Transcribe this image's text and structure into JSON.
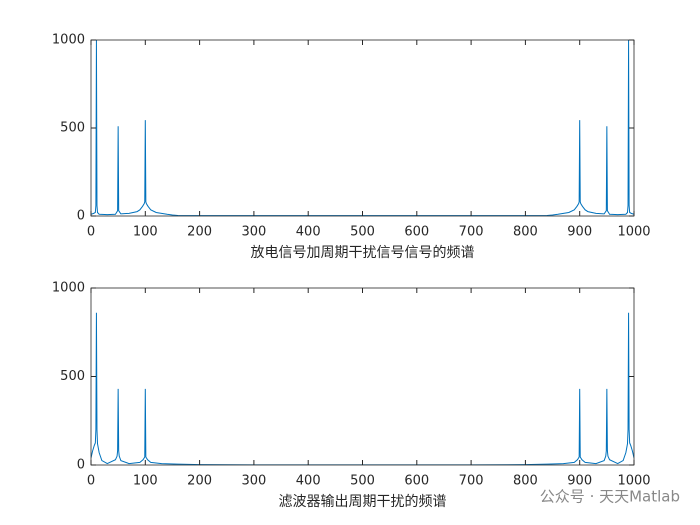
{
  "chart_data": [
    {
      "type": "line",
      "xlabel": "放电信号加周期干扰信号信号的频谱",
      "x": [
        0,
        5,
        8,
        9,
        10,
        11,
        12,
        15,
        30,
        45,
        49,
        50,
        51,
        55,
        70,
        85,
        90,
        95,
        98,
        99,
        100,
        101,
        102,
        105,
        110,
        120,
        140,
        150,
        160,
        200,
        300,
        400,
        500,
        600,
        700,
        800,
        840,
        850,
        860,
        880,
        890,
        895,
        898,
        899,
        900,
        901,
        902,
        905,
        910,
        915,
        930,
        945,
        949,
        950,
        951,
        955,
        970,
        985,
        988,
        989,
        990,
        991,
        992,
        995,
        1000
      ],
      "series": [
        {
          "color": "#0072bd",
          "values": [
            10,
            15,
            20,
            60,
            1000,
            60,
            20,
            10,
            8,
            10,
            30,
            510,
            30,
            12,
            15,
            25,
            35,
            55,
            70,
            80,
            545,
            80,
            70,
            55,
            35,
            20,
            10,
            6,
            3,
            2,
            2,
            2,
            2,
            2,
            2,
            2,
            3,
            6,
            10,
            20,
            35,
            55,
            70,
            80,
            545,
            80,
            70,
            55,
            35,
            25,
            15,
            12,
            30,
            510,
            30,
            10,
            8,
            10,
            20,
            60,
            1000,
            60,
            20,
            15,
            10
          ]
        }
      ],
      "xlim": [
        0,
        1000
      ],
      "xticks": [
        0,
        100,
        200,
        300,
        400,
        500,
        600,
        700,
        800,
        900,
        1000
      ],
      "ylim": [
        0,
        1000
      ],
      "yticks": [
        0,
        500,
        1000
      ]
    },
    {
      "type": "line",
      "xlabel": "滤波器输出周期干扰的频谱",
      "x": [
        0,
        3,
        6,
        8,
        9,
        10,
        11,
        12,
        15,
        20,
        30,
        45,
        48,
        49,
        50,
        51,
        52,
        55,
        70,
        90,
        96,
        99,
        100,
        101,
        104,
        110,
        130,
        160,
        200,
        300,
        400,
        500,
        600,
        700,
        800,
        840,
        870,
        890,
        896,
        899,
        900,
        901,
        904,
        910,
        930,
        945,
        948,
        949,
        950,
        951,
        952,
        955,
        970,
        980,
        985,
        988,
        989,
        990,
        991,
        992,
        994,
        997,
        1000
      ],
      "series": [
        {
          "color": "#0072bd",
          "values": [
            40,
            80,
            110,
            125,
            200,
            860,
            200,
            120,
            70,
            25,
            8,
            30,
            50,
            80,
            430,
            80,
            50,
            25,
            8,
            15,
            30,
            45,
            430,
            45,
            30,
            15,
            8,
            5,
            2,
            1,
            1,
            1,
            1,
            1,
            2,
            5,
            8,
            15,
            30,
            45,
            430,
            45,
            30,
            15,
            8,
            25,
            50,
            80,
            430,
            80,
            50,
            30,
            8,
            25,
            70,
            120,
            200,
            860,
            200,
            125,
            110,
            80,
            40
          ]
        }
      ],
      "xlim": [
        0,
        1000
      ],
      "xticks": [
        0,
        100,
        200,
        300,
        400,
        500,
        600,
        700,
        800,
        900,
        1000
      ],
      "ylim": [
        0,
        1000
      ],
      "yticks": [
        0,
        500,
        1000
      ]
    }
  ],
  "watermark": "公众号 · 天天Matlab"
}
